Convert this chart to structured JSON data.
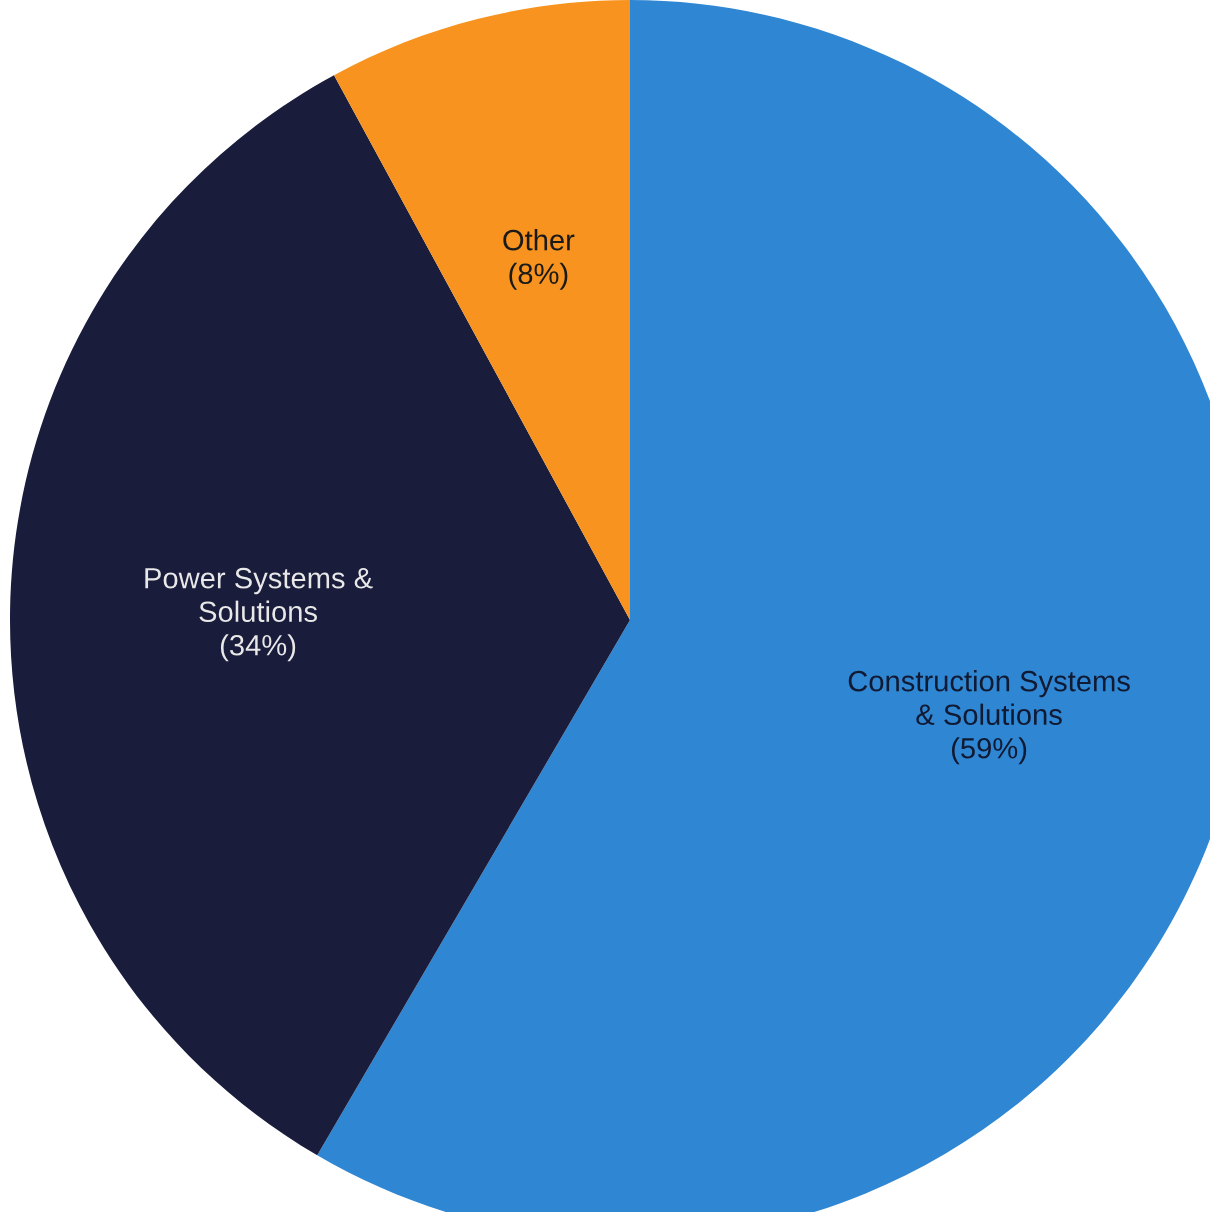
{
  "chart_data": {
    "type": "pie",
    "categories": [
      "Construction Systems\n& Solutions",
      "Power Systems &\nSolutions",
      "Other"
    ],
    "values": [
      59,
      34,
      8
    ],
    "value_labels": [
      "(59%)",
      "(34%)",
      "(8%)"
    ],
    "colors": [
      "#2f86d2",
      "#191c3b",
      "#f7931e"
    ]
  }
}
